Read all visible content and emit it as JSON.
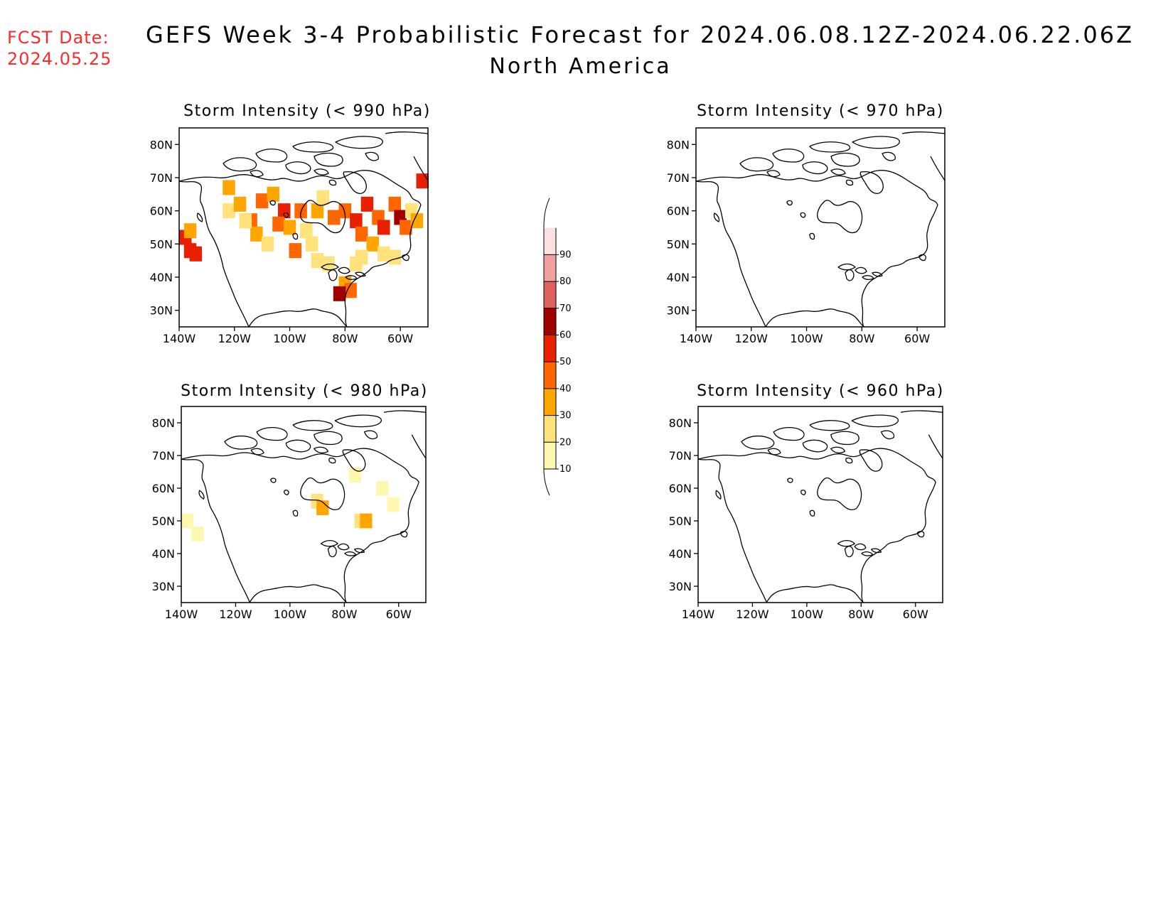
{
  "header": {
    "fcst_label": "FCST Date:",
    "fcst_date": "2024.05.25",
    "title": "GEFS Week 3-4 Probabilistic Forecast for 2024.06.08.12Z-2024.06.22.06Z",
    "subtitle": "North America"
  },
  "panels": [
    {
      "id": "p990",
      "title": "Storm Intensity (< 990 hPa)"
    },
    {
      "id": "p970",
      "title": "Storm Intensity (< 970 hPa)"
    },
    {
      "id": "p980",
      "title": "Storm Intensity (< 980 hPa)"
    },
    {
      "id": "p960",
      "title": "Storm Intensity (< 960 hPa)"
    }
  ],
  "axes": {
    "lat_ticks": [
      "80N",
      "70N",
      "60N",
      "50N",
      "40N",
      "30N"
    ],
    "lon_ticks": [
      "140W",
      "120W",
      "100W",
      "80W",
      "60W"
    ],
    "lat_values": [
      80,
      70,
      60,
      50,
      40,
      30
    ],
    "lon_values": [
      -140,
      -120,
      -100,
      -80,
      -60
    ],
    "lon_range": [
      -140,
      -50
    ],
    "lat_range": [
      25,
      85
    ]
  },
  "colorbar": {
    "labels": [
      "10",
      "20",
      "30",
      "40",
      "50",
      "60",
      "70",
      "80",
      "90"
    ],
    "colors": [
      "#fff7b0",
      "#ffe27a",
      "#ffa500",
      "#ff6600",
      "#e82000",
      "#a00000",
      "#e06060",
      "#f0a0a0",
      "#fde0e0"
    ]
  },
  "chart_data": {
    "type": "heatmap",
    "units": "probability (%)",
    "grid_note": "lon, lat, probability class lower bound",
    "p990": [
      [
        -138,
        52,
        50
      ],
      [
        -136,
        48,
        50
      ],
      [
        -134,
        47,
        50
      ],
      [
        -136,
        54,
        30
      ],
      [
        -122,
        67,
        30
      ],
      [
        -122,
        60,
        20
      ],
      [
        -118,
        62,
        30
      ],
      [
        -114,
        57,
        40
      ],
      [
        -112,
        53,
        30
      ],
      [
        -116,
        57,
        20
      ],
      [
        -110,
        63,
        40
      ],
      [
        -106,
        65,
        30
      ],
      [
        -102,
        60,
        50
      ],
      [
        -104,
        56,
        40
      ],
      [
        -108,
        50,
        20
      ],
      [
        -100,
        55,
        30
      ],
      [
        -96,
        60,
        40
      ],
      [
        -98,
        48,
        40
      ],
      [
        -94,
        54,
        20
      ],
      [
        -90,
        60,
        30
      ],
      [
        -92,
        50,
        20
      ],
      [
        -88,
        64,
        20
      ],
      [
        -84,
        58,
        40
      ],
      [
        -80,
        60,
        40
      ],
      [
        -76,
        57,
        50
      ],
      [
        -74,
        53,
        40
      ],
      [
        -72,
        62,
        50
      ],
      [
        -68,
        58,
        40
      ],
      [
        -66,
        55,
        50
      ],
      [
        -62,
        62,
        40
      ],
      [
        -60,
        58,
        60
      ],
      [
        -58,
        55,
        40
      ],
      [
        -56,
        60,
        20
      ],
      [
        -54,
        57,
        30
      ],
      [
        -52,
        69,
        50
      ],
      [
        -70,
        50,
        30
      ],
      [
        -74,
        46,
        20
      ],
      [
        -76,
        44,
        20
      ],
      [
        -80,
        38,
        30
      ],
      [
        -78,
        36,
        40
      ],
      [
        -82,
        35,
        60
      ],
      [
        -86,
        44,
        20
      ],
      [
        -90,
        45,
        20
      ],
      [
        -66,
        47,
        20
      ],
      [
        -62,
        46,
        20
      ]
    ],
    "p980": [
      [
        -138,
        50,
        10
      ],
      [
        -134,
        46,
        10
      ],
      [
        -90,
        56,
        20
      ],
      [
        -88,
        54,
        30
      ],
      [
        -74,
        50,
        20
      ],
      [
        -72,
        50,
        30
      ],
      [
        -76,
        64,
        10
      ],
      [
        -62,
        55,
        10
      ],
      [
        -66,
        60,
        10
      ]
    ],
    "p970": [],
    "p960": []
  }
}
